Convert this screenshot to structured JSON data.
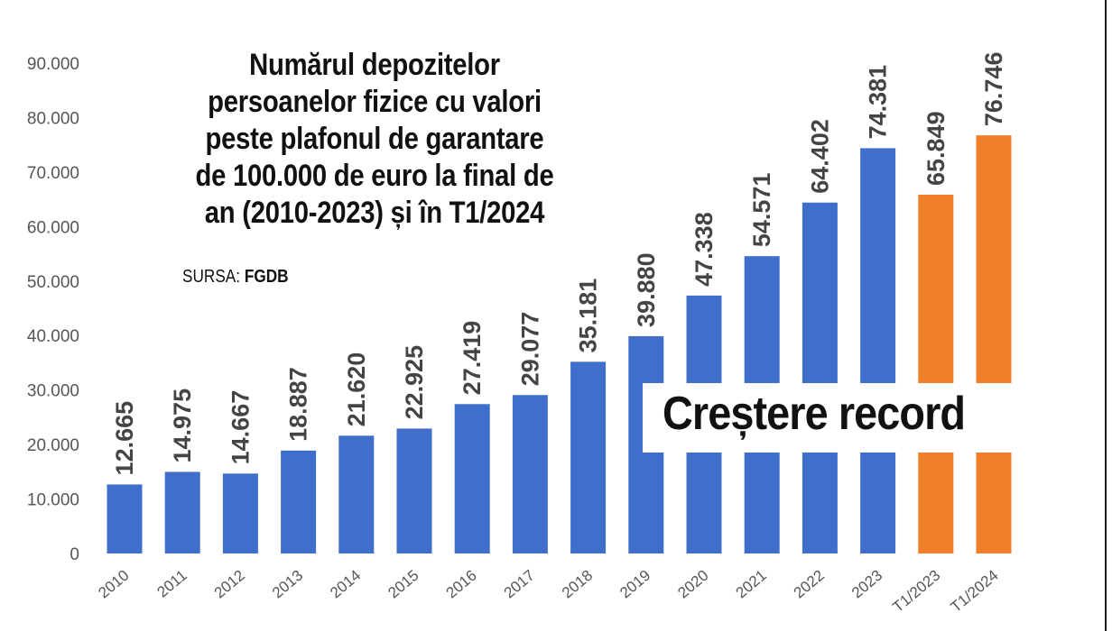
{
  "chart_data": {
    "type": "bar",
    "title_lines": [
      "Numărul depozitelor",
      "persoanelor fizice cu valori",
      "peste plafonul de garantare",
      "de 100.000 de euro la final de",
      "an (2010-2023) și în T1/2024"
    ],
    "source_label": "SURSA:",
    "source_name": "FGDB",
    "annotation": "Creștere record",
    "categories": [
      "2010",
      "2011",
      "2012",
      "2013",
      "2014",
      "2015",
      "2016",
      "2017",
      "2018",
      "2019",
      "2020",
      "2021",
      "2022",
      "2023",
      "T1/2023",
      "T1/2024"
    ],
    "values": [
      12665,
      14975,
      14667,
      18887,
      21620,
      22925,
      27419,
      29077,
      35181,
      39880,
      47338,
      54571,
      64402,
      74381,
      65849,
      76746
    ],
    "value_labels": [
      "12.665",
      "14.975",
      "14.667",
      "18.887",
      "21.620",
      "22.925",
      "27.419",
      "29.077",
      "35.181",
      "39.880",
      "47.338",
      "54.571",
      "64.402",
      "74.381",
      "65.849",
      "76.746"
    ],
    "bar_colors": [
      "#3f6fcb",
      "#3f6fcb",
      "#3f6fcb",
      "#3f6fcb",
      "#3f6fcb",
      "#3f6fcb",
      "#3f6fcb",
      "#3f6fcb",
      "#3f6fcb",
      "#3f6fcb",
      "#3f6fcb",
      "#3f6fcb",
      "#3f6fcb",
      "#3f6fcb",
      "#f07f2c",
      "#f07f2c"
    ],
    "y_ticks": [
      0,
      10000,
      20000,
      30000,
      40000,
      50000,
      60000,
      70000,
      80000,
      90000
    ],
    "y_tick_labels": [
      "0",
      "10.000",
      "20.000",
      "30.000",
      "40.000",
      "50.000",
      "60.000",
      "70.000",
      "80.000",
      "90.000"
    ],
    "ylim": [
      0,
      90000
    ],
    "xlabel": "",
    "ylabel": "",
    "grid": false,
    "legend": "none"
  }
}
